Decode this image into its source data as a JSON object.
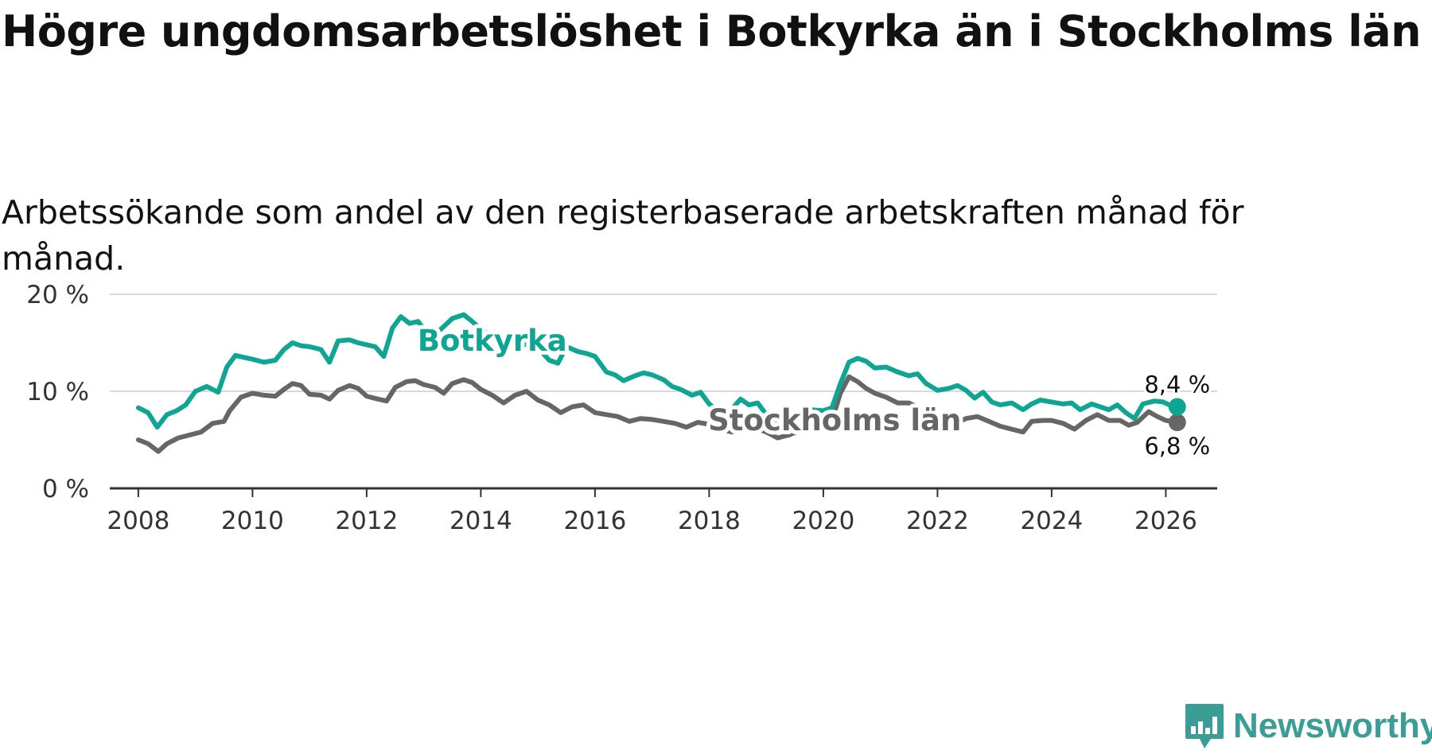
{
  "title": "Högre ungdomsarbetslöshet i Botkyrka än i Stockholms län",
  "subtitle": "Arbetssökande som andel av den registerbaserade arbetskraften månad för månad.",
  "brand": {
    "name": "Newsworthy",
    "icon": "newsworthy-logo-icon",
    "color": "#3a9e97"
  },
  "chart_data": {
    "type": "line",
    "title": "Högre ungdomsarbetslöshet i Botkyrka än i Stockholms län",
    "subtitle": "Arbetssökande som andel av den registerbaserade arbetskraften månad för månad.",
    "xlabel": "",
    "ylabel": "",
    "xlim": [
      2007.5,
      2026.9
    ],
    "ylim": [
      0,
      20
    ],
    "x_ticks": [
      2008,
      2010,
      2012,
      2014,
      2016,
      2018,
      2020,
      2022,
      2024,
      2026
    ],
    "x_tick_labels": [
      "2008",
      "2010",
      "2012",
      "2014",
      "2016",
      "2018",
      "2020",
      "2022",
      "2024",
      "2026"
    ],
    "y_ticks": [
      0,
      10,
      20
    ],
    "y_tick_labels": [
      "0 %",
      "10 %",
      "20 %"
    ],
    "grid": true,
    "series": [
      {
        "name": "Botkyrka",
        "color": "#0ea593",
        "end_label": "8,4 %",
        "points": [
          [
            2008.0,
            8.3
          ],
          [
            2008.17,
            7.8
          ],
          [
            2008.33,
            6.3
          ],
          [
            2008.5,
            7.6
          ],
          [
            2008.67,
            8.0
          ],
          [
            2008.83,
            8.6
          ],
          [
            2009.0,
            10.0
          ],
          [
            2009.2,
            10.5
          ],
          [
            2009.4,
            9.9
          ],
          [
            2009.55,
            12.5
          ],
          [
            2009.7,
            13.7
          ],
          [
            2009.85,
            13.5
          ],
          [
            2010.0,
            13.3
          ],
          [
            2010.2,
            13.0
          ],
          [
            2010.4,
            13.2
          ],
          [
            2010.55,
            14.3
          ],
          [
            2010.7,
            15.0
          ],
          [
            2010.85,
            14.7
          ],
          [
            2011.0,
            14.6
          ],
          [
            2011.2,
            14.3
          ],
          [
            2011.35,
            13.0
          ],
          [
            2011.5,
            15.2
          ],
          [
            2011.7,
            15.3
          ],
          [
            2011.85,
            15.0
          ],
          [
            2012.0,
            14.8
          ],
          [
            2012.15,
            14.6
          ],
          [
            2012.3,
            13.6
          ],
          [
            2012.45,
            16.5
          ],
          [
            2012.6,
            17.7
          ],
          [
            2012.75,
            17.0
          ],
          [
            2012.9,
            17.2
          ],
          [
            2013.1,
            15.6
          ],
          [
            2013.3,
            16.4
          ],
          [
            2013.5,
            17.5
          ],
          [
            2013.7,
            17.9
          ],
          [
            2013.85,
            17.2
          ],
          [
            2014.0,
            16.4
          ],
          [
            2014.2,
            15.6
          ],
          [
            2014.4,
            14.7
          ],
          [
            2014.6,
            15.0
          ],
          [
            2014.8,
            14.8
          ],
          [
            2015.0,
            14.5
          ],
          [
            2015.2,
            13.2
          ],
          [
            2015.35,
            12.9
          ],
          [
            2015.5,
            14.6
          ],
          [
            2015.7,
            14.1
          ],
          [
            2015.85,
            13.9
          ],
          [
            2016.0,
            13.6
          ],
          [
            2016.2,
            12.0
          ],
          [
            2016.35,
            11.7
          ],
          [
            2016.5,
            11.1
          ],
          [
            2016.7,
            11.6
          ],
          [
            2016.85,
            11.9
          ],
          [
            2017.0,
            11.7
          ],
          [
            2017.2,
            11.2
          ],
          [
            2017.35,
            10.5
          ],
          [
            2017.5,
            10.2
          ],
          [
            2017.7,
            9.6
          ],
          [
            2017.85,
            9.9
          ],
          [
            2018.0,
            8.7
          ],
          [
            2018.2,
            7.8
          ],
          [
            2018.4,
            8.2
          ],
          [
            2018.55,
            9.2
          ],
          [
            2018.7,
            8.6
          ],
          [
            2018.85,
            8.8
          ],
          [
            2019.0,
            7.6
          ],
          [
            2019.2,
            7.0
          ],
          [
            2019.4,
            7.3
          ],
          [
            2019.6,
            7.8
          ],
          [
            2019.8,
            8.1
          ],
          [
            2020.0,
            8.0
          ],
          [
            2020.15,
            8.3
          ],
          [
            2020.3,
            10.8
          ],
          [
            2020.45,
            13.0
          ],
          [
            2020.6,
            13.4
          ],
          [
            2020.75,
            13.1
          ],
          [
            2020.9,
            12.4
          ],
          [
            2021.1,
            12.5
          ],
          [
            2021.3,
            12.0
          ],
          [
            2021.5,
            11.6
          ],
          [
            2021.65,
            11.8
          ],
          [
            2021.8,
            10.8
          ],
          [
            2022.0,
            10.1
          ],
          [
            2022.2,
            10.3
          ],
          [
            2022.35,
            10.6
          ],
          [
            2022.5,
            10.1
          ],
          [
            2022.65,
            9.3
          ],
          [
            2022.8,
            9.9
          ],
          [
            2022.95,
            8.9
          ],
          [
            2023.1,
            8.6
          ],
          [
            2023.3,
            8.8
          ],
          [
            2023.5,
            8.1
          ],
          [
            2023.65,
            8.7
          ],
          [
            2023.8,
            9.1
          ],
          [
            2024.0,
            8.9
          ],
          [
            2024.2,
            8.7
          ],
          [
            2024.35,
            8.8
          ],
          [
            2024.5,
            8.1
          ],
          [
            2024.7,
            8.7
          ],
          [
            2024.85,
            8.4
          ],
          [
            2025.0,
            8.1
          ],
          [
            2025.15,
            8.6
          ],
          [
            2025.3,
            7.8
          ],
          [
            2025.45,
            7.2
          ],
          [
            2025.6,
            8.7
          ],
          [
            2025.8,
            9.0
          ],
          [
            2025.95,
            8.9
          ],
          [
            2026.1,
            8.5
          ],
          [
            2026.2,
            8.4
          ]
        ]
      },
      {
        "name": "Stockholms län",
        "color": "#666666",
        "end_label": "6,8 %",
        "points": [
          [
            2008.0,
            5.0
          ],
          [
            2008.17,
            4.6
          ],
          [
            2008.35,
            3.8
          ],
          [
            2008.5,
            4.6
          ],
          [
            2008.7,
            5.2
          ],
          [
            2008.9,
            5.5
          ],
          [
            2009.1,
            5.8
          ],
          [
            2009.3,
            6.7
          ],
          [
            2009.5,
            6.9
          ],
          [
            2009.6,
            8.0
          ],
          [
            2009.8,
            9.4
          ],
          [
            2010.0,
            9.8
          ],
          [
            2010.2,
            9.6
          ],
          [
            2010.4,
            9.5
          ],
          [
            2010.55,
            10.2
          ],
          [
            2010.7,
            10.8
          ],
          [
            2010.85,
            10.6
          ],
          [
            2011.0,
            9.7
          ],
          [
            2011.2,
            9.6
          ],
          [
            2011.35,
            9.2
          ],
          [
            2011.5,
            10.1
          ],
          [
            2011.7,
            10.6
          ],
          [
            2011.85,
            10.3
          ],
          [
            2012.0,
            9.5
          ],
          [
            2012.2,
            9.2
          ],
          [
            2012.35,
            9.0
          ],
          [
            2012.5,
            10.4
          ],
          [
            2012.7,
            11.0
          ],
          [
            2012.85,
            11.1
          ],
          [
            2013.0,
            10.7
          ],
          [
            2013.2,
            10.4
          ],
          [
            2013.35,
            9.8
          ],
          [
            2013.5,
            10.8
          ],
          [
            2013.7,
            11.2
          ],
          [
            2013.85,
            10.9
          ],
          [
            2014.0,
            10.2
          ],
          [
            2014.2,
            9.6
          ],
          [
            2014.4,
            8.8
          ],
          [
            2014.6,
            9.6
          ],
          [
            2014.8,
            10.0
          ],
          [
            2015.0,
            9.1
          ],
          [
            2015.2,
            8.6
          ],
          [
            2015.4,
            7.8
          ],
          [
            2015.6,
            8.4
          ],
          [
            2015.8,
            8.6
          ],
          [
            2016.0,
            7.8
          ],
          [
            2016.2,
            7.6
          ],
          [
            2016.4,
            7.4
          ],
          [
            2016.6,
            6.9
          ],
          [
            2016.8,
            7.2
          ],
          [
            2017.0,
            7.1
          ],
          [
            2017.2,
            6.9
          ],
          [
            2017.4,
            6.7
          ],
          [
            2017.6,
            6.3
          ],
          [
            2017.8,
            6.8
          ],
          [
            2018.0,
            6.6
          ],
          [
            2018.2,
            6.1
          ],
          [
            2018.4,
            5.8
          ],
          [
            2018.6,
            6.5
          ],
          [
            2018.8,
            6.2
          ],
          [
            2019.0,
            5.8
          ],
          [
            2019.2,
            5.2
          ],
          [
            2019.4,
            5.5
          ],
          [
            2019.6,
            6.0
          ],
          [
            2019.8,
            6.3
          ],
          [
            2020.0,
            6.4
          ],
          [
            2020.15,
            7.0
          ],
          [
            2020.3,
            9.8
          ],
          [
            2020.45,
            11.5
          ],
          [
            2020.6,
            11.0
          ],
          [
            2020.75,
            10.3
          ],
          [
            2020.9,
            9.8
          ],
          [
            2021.1,
            9.4
          ],
          [
            2021.3,
            8.8
          ],
          [
            2021.5,
            8.8
          ],
          [
            2021.7,
            8.2
          ],
          [
            2021.85,
            7.4
          ],
          [
            2022.0,
            7.4
          ],
          [
            2022.2,
            7.1
          ],
          [
            2022.35,
            6.8
          ],
          [
            2022.5,
            7.2
          ],
          [
            2022.7,
            7.4
          ],
          [
            2022.9,
            6.9
          ],
          [
            2023.1,
            6.4
          ],
          [
            2023.3,
            6.1
          ],
          [
            2023.5,
            5.8
          ],
          [
            2023.65,
            6.9
          ],
          [
            2023.85,
            7.0
          ],
          [
            2024.0,
            7.0
          ],
          [
            2024.2,
            6.7
          ],
          [
            2024.4,
            6.1
          ],
          [
            2024.6,
            7.0
          ],
          [
            2024.8,
            7.6
          ],
          [
            2025.0,
            7.0
          ],
          [
            2025.2,
            7.0
          ],
          [
            2025.35,
            6.5
          ],
          [
            2025.5,
            6.8
          ],
          [
            2025.7,
            7.9
          ],
          [
            2025.85,
            7.4
          ],
          [
            2026.0,
            7.0
          ],
          [
            2026.2,
            6.8
          ]
        ]
      }
    ]
  }
}
